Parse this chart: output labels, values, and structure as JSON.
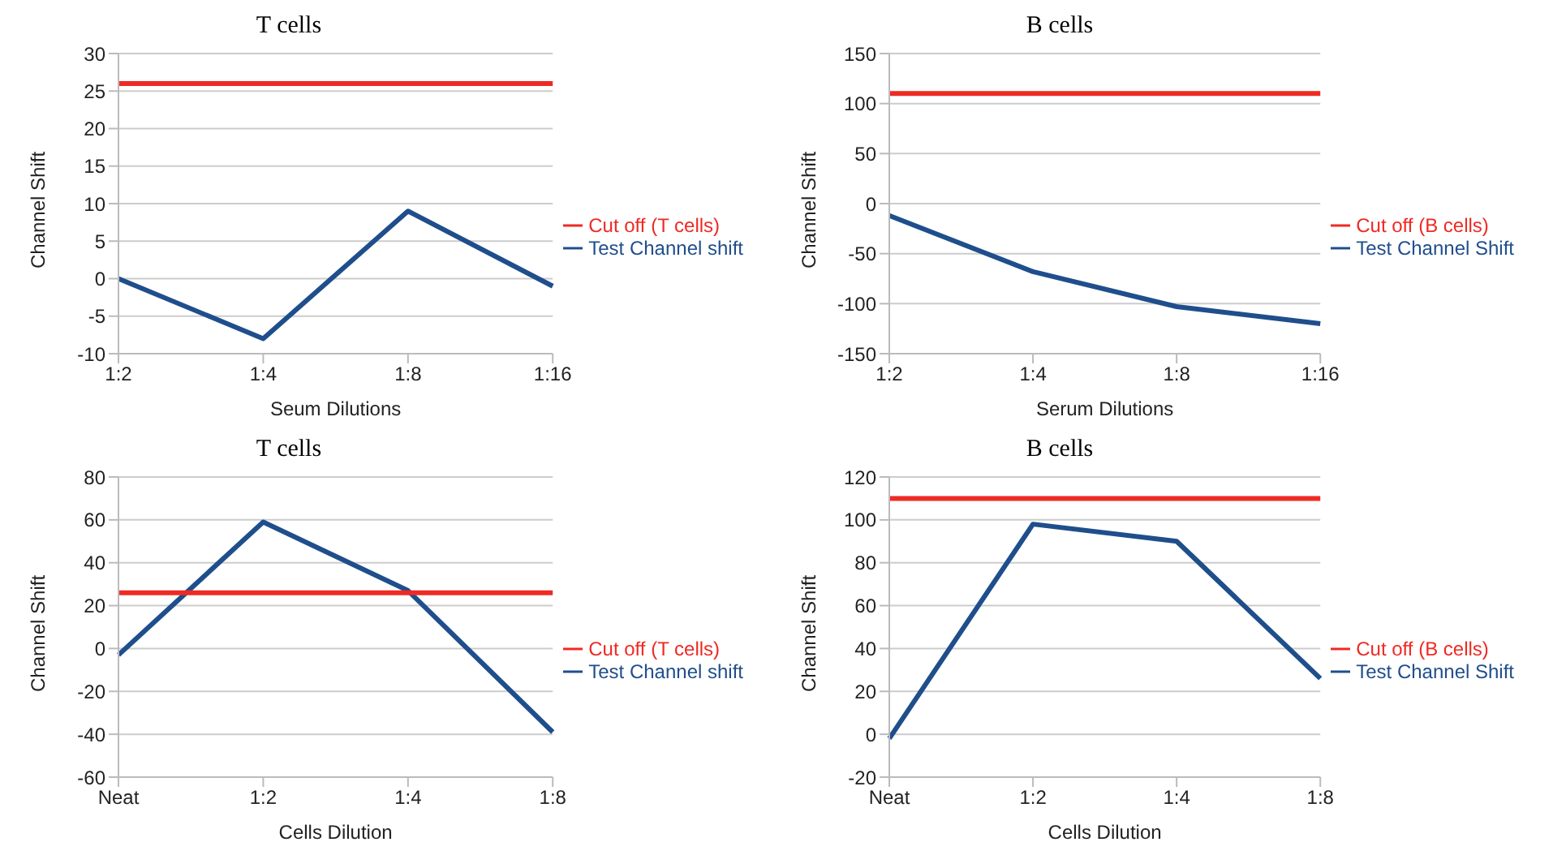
{
  "chart_data": [
    {
      "type": "line",
      "title": "T cells",
      "xlabel": "Seum Dilutions",
      "ylabel": "Channel Shift",
      "categories": [
        "1:2",
        "1:4",
        "1:8",
        "1:16"
      ],
      "series": [
        {
          "name": "Test Channel shift",
          "color": "#1f4e8c",
          "values": [
            0,
            -8,
            9,
            -1
          ]
        },
        {
          "name": "Cut off (T cells)",
          "color": "#ee2a24",
          "values": [
            26,
            26,
            26,
            26
          ]
        }
      ],
      "ylim": [
        -10,
        30
      ],
      "yticks": [
        -10,
        -5,
        0,
        5,
        10,
        15,
        20,
        25,
        30
      ],
      "grid": "y",
      "legend": "right",
      "marker": "none",
      "line_style": "solid"
    },
    {
      "type": "line",
      "title": "B cells",
      "xlabel": "Serum Dilutions",
      "ylabel": "Channel Shift",
      "categories": [
        "1:2",
        "1:4",
        "1:8",
        "1:16"
      ],
      "series": [
        {
          "name": "Test Channel Shift",
          "color": "#1f4e8c",
          "values": [
            -12,
            -68,
            -103,
            -120
          ]
        },
        {
          "name": "Cut off (B cells)",
          "color": "#ee2a24",
          "values": [
            110,
            110,
            110,
            110
          ]
        }
      ],
      "ylim": [
        -150,
        150
      ],
      "yticks": [
        -150,
        -100,
        -50,
        0,
        50,
        100,
        150
      ],
      "grid": "y",
      "legend": "right",
      "marker": "none",
      "line_style": "solid"
    },
    {
      "type": "line",
      "title": "T cells",
      "xlabel": "Cells Dilution",
      "ylabel": "Channel Shift",
      "categories": [
        "Neat",
        "1:2",
        "1:4",
        "1:8"
      ],
      "series": [
        {
          "name": "Test Channel shift",
          "color": "#1f4e8c",
          "values": [
            -3,
            59,
            27,
            -39
          ]
        },
        {
          "name": "Cut off (T cells)",
          "color": "#ee2a24",
          "values": [
            26,
            26,
            26,
            26
          ]
        }
      ],
      "ylim": [
        -60,
        80
      ],
      "yticks": [
        -60,
        -40,
        -20,
        0,
        20,
        40,
        60,
        80
      ],
      "grid": "y",
      "legend": "right",
      "marker": "none",
      "line_style": "solid"
    },
    {
      "type": "line",
      "title": "B cells",
      "xlabel": "Cells Dilution",
      "ylabel": "Channel Shift",
      "categories": [
        "Neat",
        "1:2",
        "1:4",
        "1:8"
      ],
      "series": [
        {
          "name": "Test Channel Shift",
          "color": "#1f4e8c",
          "values": [
            -2,
            98,
            90,
            26
          ]
        },
        {
          "name": "Cut off (B cells)",
          "color": "#ee2a24",
          "values": [
            110,
            110,
            110,
            110
          ]
        }
      ],
      "ylim": [
        -20,
        120
      ],
      "yticks": [
        -20,
        0,
        20,
        40,
        60,
        80,
        100,
        120
      ],
      "grid": "y",
      "legend": "right",
      "marker": "none",
      "line_style": "solid"
    }
  ]
}
